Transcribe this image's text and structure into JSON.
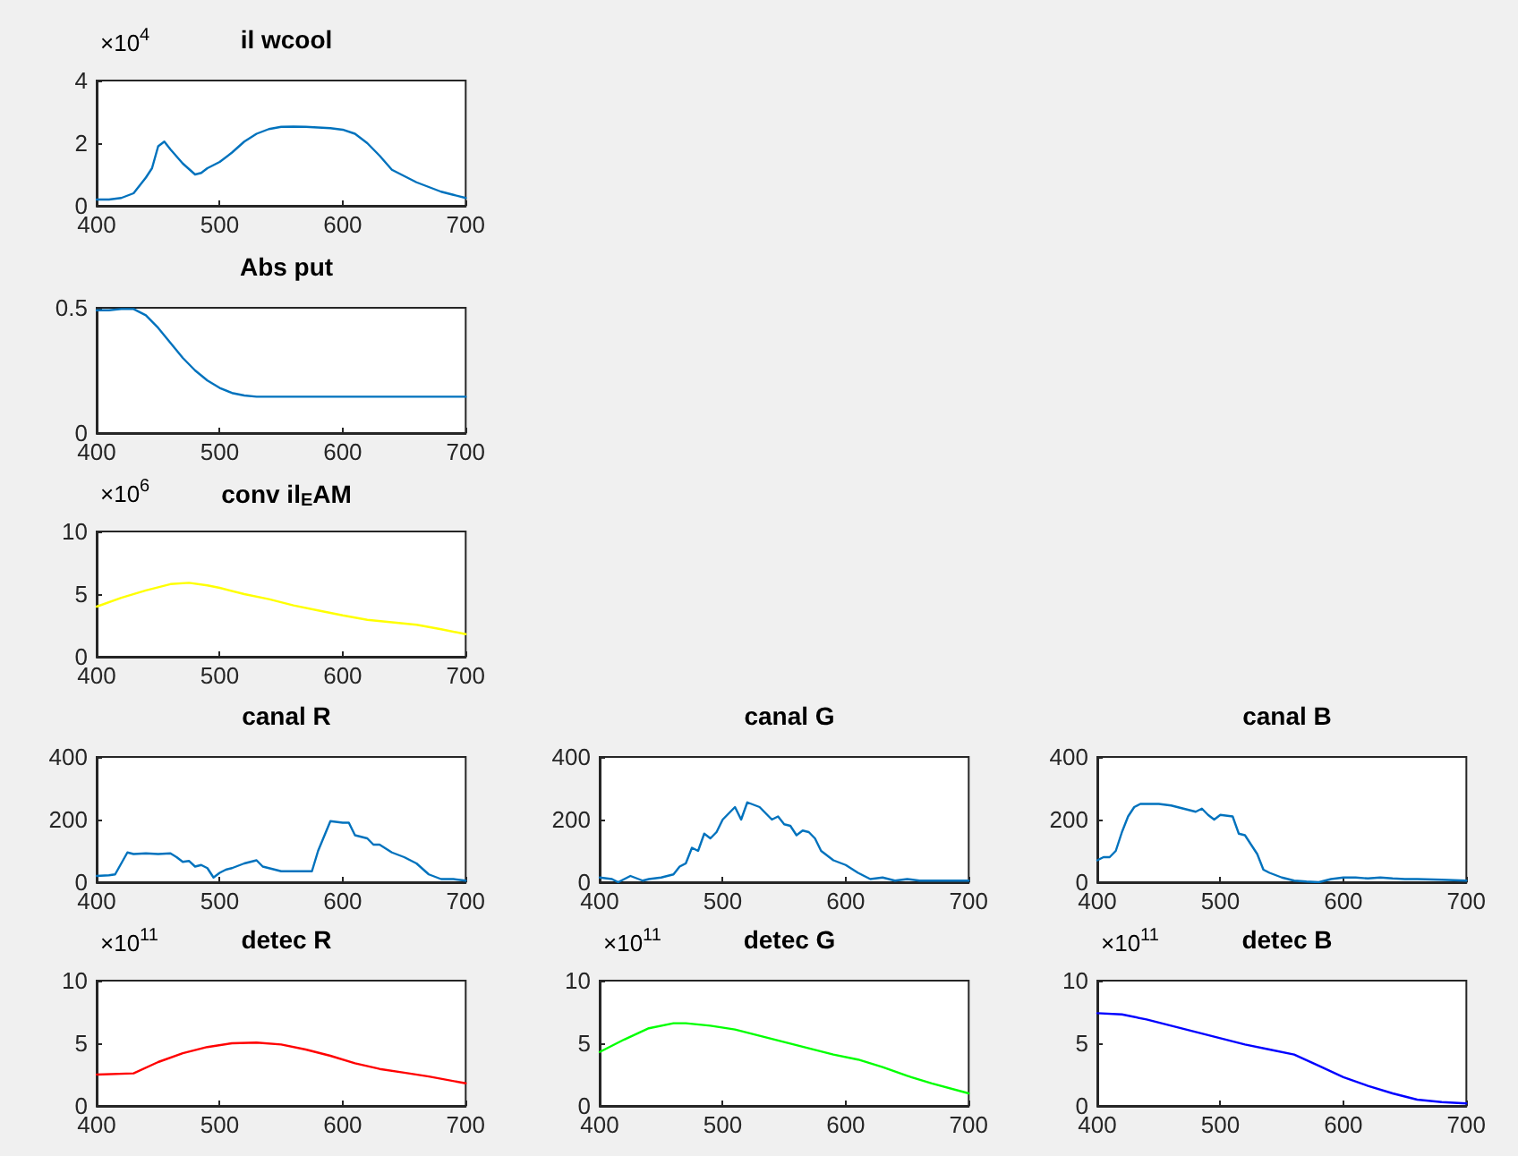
{
  "chart_data": [
    {
      "type": "line",
      "title": "il wcool",
      "annotations": [
        "×10$^{4}$"
      ],
      "color": "#0072bd",
      "xlim": [
        400,
        700
      ],
      "xticks": [
        400,
        500,
        600,
        700
      ],
      "ylim": [
        0,
        4
      ],
      "yticks": [
        0,
        2,
        4
      ],
      "x": [
        400,
        410,
        420,
        430,
        440,
        445,
        450,
        455,
        460,
        470,
        480,
        485,
        490,
        500,
        510,
        520,
        530,
        540,
        550,
        560,
        570,
        580,
        590,
        600,
        610,
        620,
        630,
        640,
        650,
        660,
        670,
        680,
        690,
        700
      ],
      "values": [
        0.2,
        0.2,
        0.25,
        0.4,
        0.9,
        1.2,
        1.9,
        2.05,
        1.8,
        1.35,
        1.0,
        1.05,
        1.2,
        1.4,
        1.7,
        2.05,
        2.3,
        2.45,
        2.52,
        2.53,
        2.52,
        2.5,
        2.48,
        2.43,
        2.3,
        2.0,
        1.6,
        1.15,
        0.95,
        0.75,
        0.6,
        0.45,
        0.35,
        0.25
      ]
    },
    {
      "type": "line",
      "title": "Abs put",
      "color": "#0072bd",
      "xlim": [
        400,
        700
      ],
      "xticks": [
        400,
        500,
        600,
        700
      ],
      "ylim": [
        0,
        0.5
      ],
      "yticks": [
        0,
        0.5
      ],
      "x": [
        400,
        410,
        420,
        430,
        440,
        450,
        460,
        470,
        480,
        490,
        500,
        510,
        520,
        530,
        550,
        600,
        650,
        700
      ],
      "values": [
        0.49,
        0.49,
        0.495,
        0.495,
        0.47,
        0.42,
        0.36,
        0.3,
        0.25,
        0.21,
        0.18,
        0.16,
        0.15,
        0.145,
        0.145,
        0.145,
        0.145,
        0.145
      ]
    },
    {
      "type": "line",
      "title": "conv il$_{E}$AM",
      "annotations": [
        "×10$^{6}$"
      ],
      "color": "#ffff00",
      "xlim": [
        400,
        700
      ],
      "xticks": [
        400,
        500,
        600,
        700
      ],
      "ylim": [
        0,
        10
      ],
      "yticks": [
        0,
        5,
        10
      ],
      "x": [
        400,
        420,
        440,
        460,
        475,
        490,
        500,
        520,
        540,
        560,
        580,
        600,
        620,
        640,
        660,
        680,
        700
      ],
      "values": [
        4.0,
        4.7,
        5.3,
        5.8,
        5.9,
        5.7,
        5.5,
        5.0,
        4.6,
        4.1,
        3.7,
        3.3,
        2.95,
        2.75,
        2.55,
        2.2,
        1.8
      ]
    },
    {
      "type": "line",
      "title": "canal R",
      "color": "#0072bd",
      "xlim": [
        400,
        700
      ],
      "xticks": [
        400,
        500,
        600,
        700
      ],
      "ylim": [
        0,
        400
      ],
      "yticks": [
        0,
        200,
        400
      ],
      "x": [
        400,
        410,
        415,
        420,
        425,
        430,
        440,
        450,
        460,
        465,
        470,
        475,
        480,
        485,
        490,
        495,
        500,
        505,
        510,
        520,
        525,
        530,
        535,
        540,
        550,
        560,
        575,
        580,
        590,
        600,
        605,
        610,
        620,
        625,
        630,
        640,
        650,
        660,
        670,
        680,
        690,
        700
      ],
      "values": [
        20,
        22,
        25,
        60,
        95,
        90,
        92,
        90,
        92,
        80,
        65,
        68,
        50,
        55,
        45,
        15,
        30,
        40,
        45,
        60,
        65,
        70,
        50,
        45,
        35,
        35,
        35,
        100,
        195,
        190,
        190,
        150,
        140,
        120,
        120,
        95,
        80,
        60,
        25,
        10,
        10,
        5
      ]
    },
    {
      "type": "line",
      "title": "canal G",
      "color": "#0072bd",
      "xlim": [
        400,
        700
      ],
      "xticks": [
        400,
        500,
        600,
        700
      ],
      "ylim": [
        0,
        400
      ],
      "yticks": [
        0,
        200,
        400
      ],
      "x": [
        400,
        410,
        415,
        425,
        435,
        440,
        450,
        460,
        465,
        470,
        475,
        480,
        485,
        490,
        495,
        500,
        510,
        515,
        520,
        530,
        540,
        545,
        550,
        555,
        560,
        565,
        570,
        575,
        580,
        590,
        600,
        610,
        620,
        630,
        640,
        650,
        660,
        700
      ],
      "values": [
        15,
        10,
        0,
        20,
        5,
        10,
        15,
        25,
        50,
        60,
        110,
        100,
        155,
        140,
        160,
        200,
        240,
        200,
        255,
        240,
        200,
        210,
        185,
        180,
        150,
        165,
        160,
        140,
        100,
        70,
        55,
        30,
        10,
        15,
        5,
        10,
        5,
        5
      ]
    },
    {
      "type": "line",
      "title": "canal B",
      "color": "#0072bd",
      "xlim": [
        400,
        700
      ],
      "xticks": [
        400,
        500,
        600,
        700
      ],
      "ylim": [
        0,
        400
      ],
      "yticks": [
        0,
        200,
        400
      ],
      "x": [
        400,
        405,
        410,
        415,
        420,
        425,
        430,
        435,
        450,
        460,
        470,
        480,
        485,
        490,
        495,
        500,
        510,
        515,
        520,
        525,
        530,
        535,
        540,
        550,
        560,
        570,
        580,
        590,
        600,
        610,
        620,
        630,
        640,
        650,
        660,
        680,
        700
      ],
      "values": [
        70,
        80,
        80,
        100,
        160,
        210,
        240,
        250,
        250,
        245,
        235,
        225,
        235,
        215,
        200,
        215,
        210,
        155,
        150,
        120,
        90,
        40,
        30,
        15,
        5,
        2,
        0,
        10,
        15,
        15,
        12,
        15,
        12,
        10,
        10,
        8,
        5
      ]
    },
    {
      "type": "line",
      "title": "detec R",
      "annotations": [
        "×10$^{11}$"
      ],
      "color": "#ff0000",
      "xlim": [
        400,
        700
      ],
      "xticks": [
        400,
        500,
        600,
        700
      ],
      "ylim": [
        0,
        10
      ],
      "yticks": [
        0,
        5,
        10
      ],
      "x": [
        400,
        430,
        450,
        470,
        490,
        510,
        530,
        550,
        570,
        590,
        610,
        630,
        650,
        670,
        700
      ],
      "values": [
        2.5,
        2.6,
        3.5,
        4.2,
        4.7,
        5.0,
        5.05,
        4.9,
        4.5,
        4.0,
        3.4,
        2.95,
        2.65,
        2.35,
        1.8
      ]
    },
    {
      "type": "line",
      "title": "detec G",
      "annotations": [
        "×10$^{11}$"
      ],
      "color": "#00ff00",
      "xlim": [
        400,
        700
      ],
      "xticks": [
        400,
        500,
        600,
        700
      ],
      "ylim": [
        0,
        10
      ],
      "yticks": [
        0,
        5,
        10
      ],
      "x": [
        400,
        420,
        440,
        460,
        470,
        490,
        510,
        530,
        550,
        570,
        590,
        610,
        630,
        650,
        670,
        700
      ],
      "values": [
        4.3,
        5.3,
        6.2,
        6.6,
        6.6,
        6.4,
        6.1,
        5.6,
        5.1,
        4.6,
        4.1,
        3.7,
        3.1,
        2.4,
        1.8,
        1.0
      ]
    },
    {
      "type": "line",
      "title": "detec B",
      "annotations": [
        "×10$^{11}$"
      ],
      "color": "#0000ff",
      "xlim": [
        400,
        700
      ],
      "xticks": [
        400,
        500,
        600,
        700
      ],
      "ylim": [
        0,
        10
      ],
      "yticks": [
        0,
        5,
        10
      ],
      "x": [
        400,
        420,
        440,
        460,
        480,
        500,
        520,
        540,
        560,
        580,
        600,
        620,
        640,
        660,
        680,
        700
      ],
      "values": [
        7.4,
        7.3,
        6.9,
        6.4,
        5.9,
        5.4,
        4.9,
        4.5,
        4.1,
        3.2,
        2.3,
        1.6,
        1.0,
        0.5,
        0.3,
        0.2
      ]
    }
  ]
}
